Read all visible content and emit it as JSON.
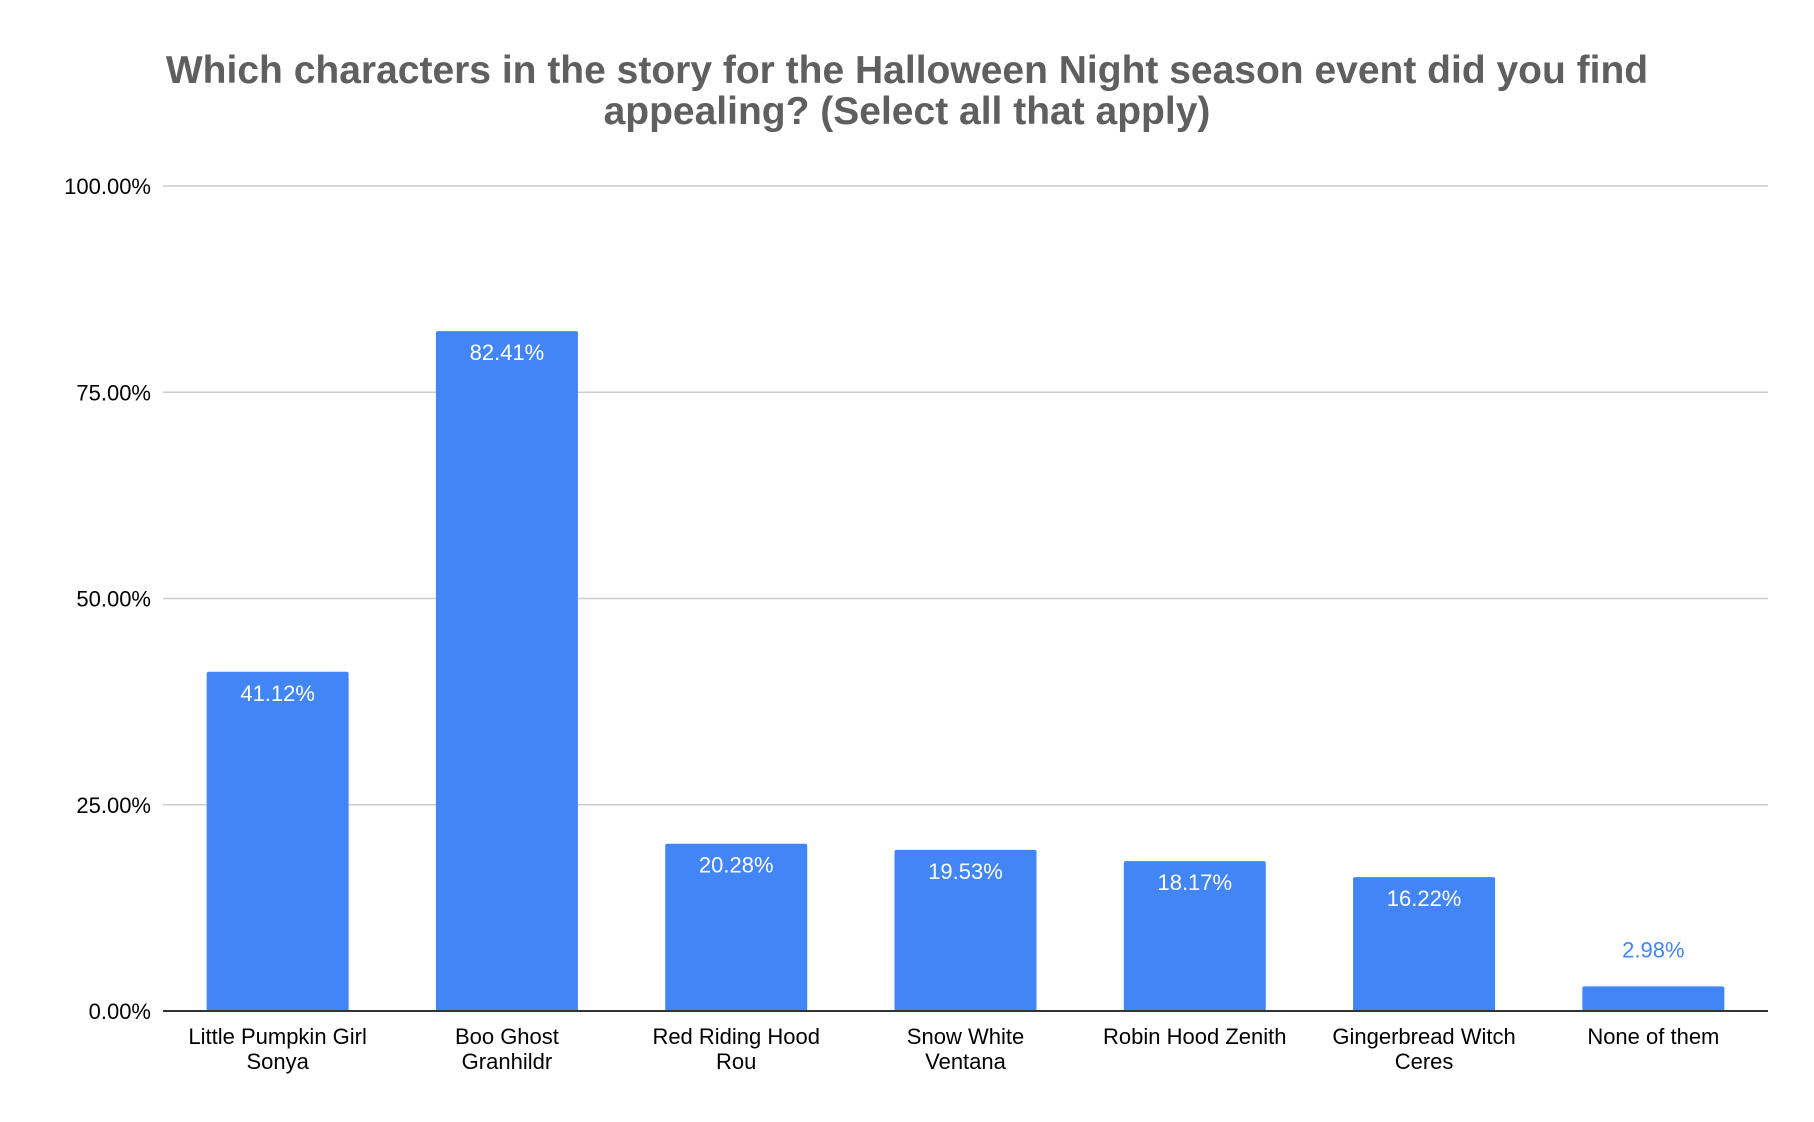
{
  "chart_data": {
    "type": "bar",
    "title_lines": [
      "Which characters in the story for the Halloween Night season event did you find",
      "appealing? (Select all that apply)"
    ],
    "categories": [
      [
        "Little Pumpkin Girl",
        "Sonya"
      ],
      [
        "Boo Ghost",
        "Granhildr"
      ],
      [
        "Red Riding Hood",
        "Rou"
      ],
      [
        "Snow White",
        "Ventana"
      ],
      [
        "Robin Hood Zenith"
      ],
      [
        "Gingerbread Witch",
        "Ceres"
      ],
      [
        "None of them"
      ]
    ],
    "values": [
      41.12,
      82.41,
      20.28,
      19.53,
      18.17,
      16.22,
      2.98
    ],
    "data_labels": [
      "41.12%",
      "82.41%",
      "20.28%",
      "19.53%",
      "18.17%",
      "16.22%",
      "2.98%"
    ],
    "y_ticks": [
      0,
      25,
      50,
      75,
      100
    ],
    "y_tick_labels": [
      "0.00%",
      "25.00%",
      "50.00%",
      "75.00%",
      "100.00%"
    ],
    "ylim": [
      0,
      100
    ],
    "grid": true,
    "legend": "none",
    "colors": {
      "bar": "#4285f4",
      "label_inside": "#ffffff",
      "label_outside": "#4285f4",
      "grid": "#cccccc",
      "axis": "#333333",
      "text": "#000000",
      "title": "#5f5f5f"
    }
  }
}
